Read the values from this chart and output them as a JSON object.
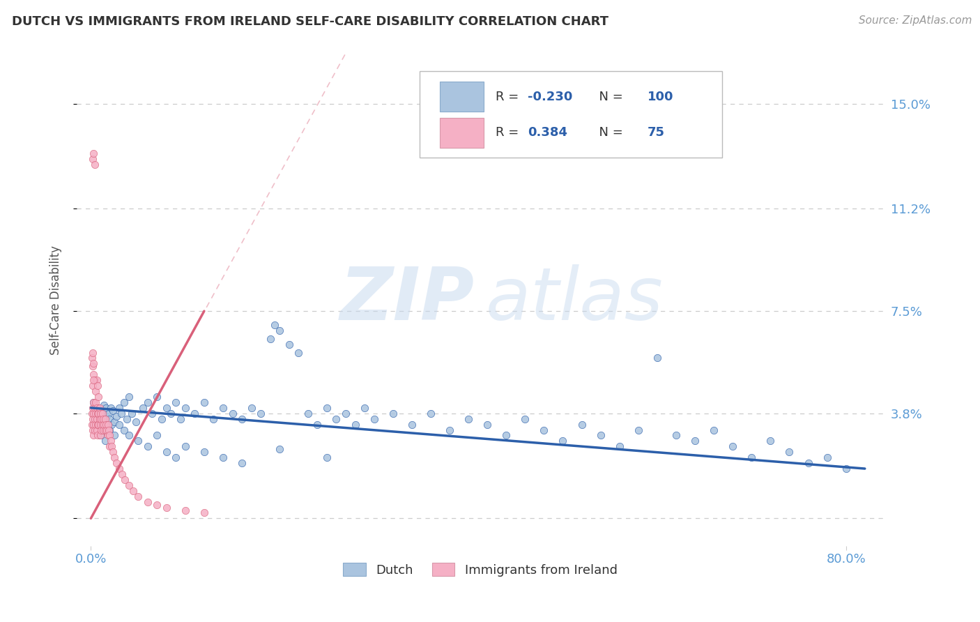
{
  "title": "DUTCH VS IMMIGRANTS FROM IRELAND SELF-CARE DISABILITY CORRELATION CHART",
  "source": "Source: ZipAtlas.com",
  "ylabel": "Self-Care Disability",
  "ytick_vals": [
    0.0,
    0.038,
    0.075,
    0.112,
    0.15
  ],
  "ytick_labels": [
    "",
    "3.8%",
    "7.5%",
    "11.2%",
    "15.0%"
  ],
  "xtick_vals": [
    0.0,
    0.8
  ],
  "xtick_labels": [
    "0.0%",
    "80.0%"
  ],
  "xlim": [
    -0.015,
    0.84
  ],
  "ylim": [
    -0.01,
    0.168
  ],
  "watermark_part1": "ZIP",
  "watermark_part2": "atlas",
  "legend_blue_R": "-0.230",
  "legend_blue_N": "100",
  "legend_pink_R": "0.384",
  "legend_pink_N": "75",
  "blue_color": "#aac4df",
  "pink_color": "#f5b0c5",
  "blue_line_color": "#2c5faa",
  "pink_line_color": "#d9607a",
  "grid_color": "#cccccc",
  "title_color": "#333333",
  "axis_tick_color": "#5b9bd5",
  "ylabel_color": "#555555",
  "source_color": "#999999",
  "legend_text_color": "#333333",
  "legend_rv_color": "#2c5faa",
  "bottom_label_color": "#333333",
  "scatter_size": 55,
  "blue_scatter_x": [
    0.003,
    0.006,
    0.008,
    0.01,
    0.011,
    0.012,
    0.013,
    0.014,
    0.015,
    0.016,
    0.017,
    0.018,
    0.019,
    0.02,
    0.021,
    0.022,
    0.023,
    0.025,
    0.027,
    0.03,
    0.032,
    0.035,
    0.038,
    0.04,
    0.043,
    0.048,
    0.055,
    0.06,
    0.065,
    0.07,
    0.075,
    0.08,
    0.085,
    0.09,
    0.095,
    0.1,
    0.11,
    0.12,
    0.13,
    0.14,
    0.15,
    0.16,
    0.17,
    0.18,
    0.19,
    0.195,
    0.2,
    0.21,
    0.22,
    0.23,
    0.24,
    0.25,
    0.26,
    0.27,
    0.28,
    0.29,
    0.3,
    0.32,
    0.34,
    0.36,
    0.38,
    0.4,
    0.42,
    0.44,
    0.46,
    0.48,
    0.5,
    0.52,
    0.54,
    0.56,
    0.58,
    0.6,
    0.62,
    0.64,
    0.66,
    0.68,
    0.7,
    0.72,
    0.74,
    0.76,
    0.78,
    0.8,
    0.01,
    0.015,
    0.02,
    0.025,
    0.03,
    0.035,
    0.04,
    0.05,
    0.06,
    0.07,
    0.08,
    0.09,
    0.1,
    0.12,
    0.14,
    0.16,
    0.2,
    0.25
  ],
  "blue_scatter_y": [
    0.042,
    0.038,
    0.04,
    0.036,
    0.039,
    0.034,
    0.038,
    0.041,
    0.035,
    0.04,
    0.037,
    0.033,
    0.038,
    0.036,
    0.04,
    0.034,
    0.039,
    0.035,
    0.037,
    0.04,
    0.038,
    0.042,
    0.036,
    0.044,
    0.038,
    0.035,
    0.04,
    0.042,
    0.038,
    0.044,
    0.036,
    0.04,
    0.038,
    0.042,
    0.036,
    0.04,
    0.038,
    0.042,
    0.036,
    0.04,
    0.038,
    0.036,
    0.04,
    0.038,
    0.065,
    0.07,
    0.068,
    0.063,
    0.06,
    0.038,
    0.034,
    0.04,
    0.036,
    0.038,
    0.034,
    0.04,
    0.036,
    0.038,
    0.034,
    0.038,
    0.032,
    0.036,
    0.034,
    0.03,
    0.036,
    0.032,
    0.028,
    0.034,
    0.03,
    0.026,
    0.032,
    0.058,
    0.03,
    0.028,
    0.032,
    0.026,
    0.022,
    0.028,
    0.024,
    0.02,
    0.022,
    0.018,
    0.03,
    0.028,
    0.032,
    0.03,
    0.034,
    0.032,
    0.03,
    0.028,
    0.026,
    0.03,
    0.024,
    0.022,
    0.026,
    0.024,
    0.022,
    0.02,
    0.025,
    0.022
  ],
  "pink_scatter_x": [
    0.001,
    0.001,
    0.002,
    0.002,
    0.002,
    0.003,
    0.003,
    0.003,
    0.003,
    0.004,
    0.004,
    0.004,
    0.005,
    0.005,
    0.005,
    0.006,
    0.006,
    0.006,
    0.007,
    0.007,
    0.007,
    0.008,
    0.008,
    0.009,
    0.009,
    0.01,
    0.01,
    0.01,
    0.011,
    0.011,
    0.012,
    0.012,
    0.013,
    0.013,
    0.014,
    0.015,
    0.015,
    0.016,
    0.017,
    0.018,
    0.018,
    0.019,
    0.02,
    0.02,
    0.021,
    0.022,
    0.023,
    0.025,
    0.027,
    0.03,
    0.033,
    0.036,
    0.04,
    0.045,
    0.05,
    0.06,
    0.07,
    0.08,
    0.1,
    0.12,
    0.002,
    0.003,
    0.004,
    0.005,
    0.006,
    0.007,
    0.008,
    0.002,
    0.003,
    0.004,
    0.001,
    0.002,
    0.002,
    0.003,
    0.003
  ],
  "pink_scatter_y": [
    0.038,
    0.034,
    0.04,
    0.036,
    0.032,
    0.042,
    0.038,
    0.034,
    0.03,
    0.04,
    0.036,
    0.032,
    0.042,
    0.038,
    0.034,
    0.04,
    0.036,
    0.032,
    0.038,
    0.034,
    0.03,
    0.038,
    0.034,
    0.04,
    0.036,
    0.038,
    0.034,
    0.03,
    0.036,
    0.032,
    0.038,
    0.034,
    0.036,
    0.032,
    0.034,
    0.036,
    0.032,
    0.034,
    0.032,
    0.034,
    0.03,
    0.032,
    0.03,
    0.026,
    0.028,
    0.026,
    0.024,
    0.022,
    0.02,
    0.018,
    0.016,
    0.014,
    0.012,
    0.01,
    0.008,
    0.006,
    0.005,
    0.004,
    0.003,
    0.002,
    0.048,
    0.052,
    0.05,
    0.046,
    0.05,
    0.048,
    0.044,
    0.13,
    0.132,
    0.128,
    0.058,
    0.06,
    0.055,
    0.056,
    0.05
  ],
  "pink_line_x": [
    0.0,
    0.12
  ],
  "pink_line_y_start": 0.0,
  "pink_line_y_end": 0.075,
  "blue_line_x": [
    0.0,
    0.82
  ],
  "blue_line_y_start": 0.04,
  "blue_line_y_end": 0.018
}
